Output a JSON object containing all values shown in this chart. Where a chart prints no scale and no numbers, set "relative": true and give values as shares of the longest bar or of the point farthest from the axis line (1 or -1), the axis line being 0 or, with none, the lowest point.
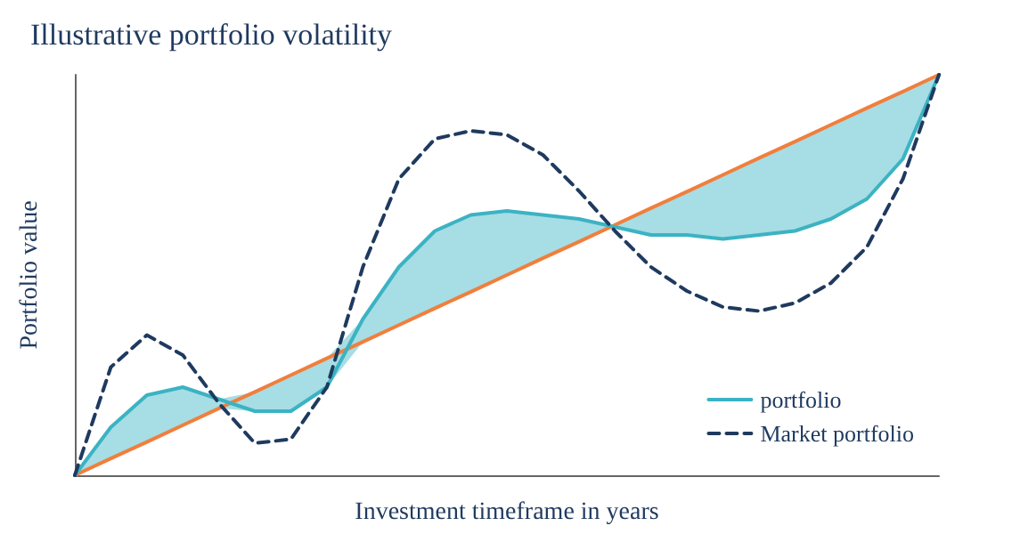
{
  "chart_data": {
    "type": "line",
    "title": "Illustrative portfolio volatility",
    "xlabel": "Investment timeframe in years",
    "ylabel": "Portfolio value",
    "relative": true,
    "marker": "none",
    "grid": false,
    "legend": "bottom right",
    "categories": [
      null,
      null,
      null,
      null,
      null,
      null,
      null,
      null,
      null,
      null,
      null,
      null,
      null,
      null,
      null,
      null,
      null,
      null,
      null,
      null,
      null,
      null,
      null,
      null,
      null
    ],
    "series": [
      {
        "color": "#f07f3c",
        "line_style": "solid",
        "values": [
          0,
          0.042,
          0.083,
          0.125,
          0.167,
          0.208,
          0.25,
          0.292,
          0.333,
          0.375,
          0.417,
          0.458,
          0.5,
          0.542,
          0.583,
          0.625,
          0.667,
          0.708,
          0.75,
          0.792,
          0.833,
          0.875,
          0.917,
          0.958,
          1
        ]
      },
      {
        "name": "portfolio",
        "color": "#3bb3c3",
        "line_style": "solid",
        "values": [
          0,
          0.12,
          0.2,
          0.22,
          0.19,
          0.16,
          0.16,
          0.22,
          0.39,
          0.52,
          0.61,
          0.65,
          0.66,
          0.65,
          0.64,
          0.62,
          0.6,
          0.6,
          0.59,
          0.6,
          0.61,
          0.64,
          0.69,
          0.79,
          1
        ],
        "lower": [
          0,
          0.042,
          0.083,
          0.125,
          0.167,
          0.16,
          0.16,
          0.22,
          0.333,
          0.375,
          0.417,
          0.458,
          0.5,
          0.542,
          0.583,
          0.62,
          0.6,
          0.6,
          0.59,
          0.6,
          0.61,
          0.64,
          0.69,
          0.79,
          1
        ],
        "upper": [
          0,
          0.12,
          0.2,
          0.22,
          0.19,
          0.208,
          0.25,
          0.292,
          0.39,
          0.52,
          0.61,
          0.65,
          0.66,
          0.65,
          0.64,
          0.625,
          0.667,
          0.708,
          0.75,
          0.792,
          0.833,
          0.875,
          0.917,
          0.958,
          1
        ]
      },
      {
        "name": "Market portfolio",
        "color": "#1f3a5f",
        "line_style": "dashed",
        "values": [
          0,
          0.27,
          0.35,
          0.3,
          0.18,
          0.08,
          0.09,
          0.22,
          0.52,
          0.74,
          0.84,
          0.86,
          0.85,
          0.8,
          0.71,
          0.61,
          0.52,
          0.46,
          0.42,
          0.41,
          0.43,
          0.48,
          0.57,
          0.74,
          1
        ]
      }
    ]
  }
}
